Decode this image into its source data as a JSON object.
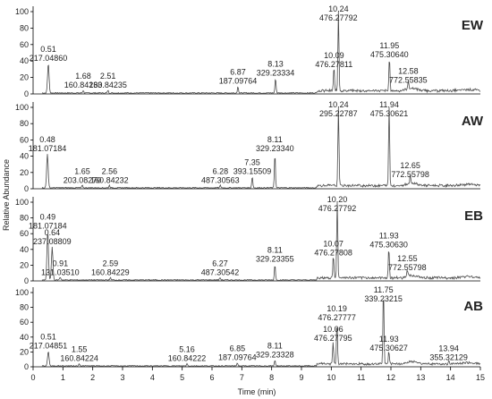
{
  "chart_data": {
    "type": "line",
    "xlabel": "Time (min)",
    "ylabel": "Relative Abundance",
    "xlim": [
      0,
      15
    ],
    "ylim": [
      0,
      100
    ],
    "x_ticks": [
      "0",
      "1",
      "2",
      "3",
      "4",
      "5",
      "6",
      "7",
      "8",
      "9",
      "10",
      "11",
      "12",
      "13",
      "14",
      "15"
    ],
    "y_ticks": [
      "0",
      "20",
      "40",
      "60",
      "80",
      "100"
    ],
    "panels": [
      {
        "name": "EW",
        "peaks": [
          {
            "rt": 0.51,
            "height": 36,
            "label": [
              "0.51",
              "217.04860"
            ]
          },
          {
            "rt": 1.68,
            "height": 3,
            "label": [
              "1.68",
              "160.84233"
            ]
          },
          {
            "rt": 2.51,
            "height": 3,
            "label": [
              "2.51",
              "160.84235"
            ]
          },
          {
            "rt": 6.87,
            "height": 8,
            "label": [
              "6.87",
              "187.09764"
            ]
          },
          {
            "rt": 8.13,
            "height": 18,
            "label": [
              "8.13",
              "329.23334"
            ]
          },
          {
            "rt": 10.09,
            "height": 28,
            "label": [
              "10.09",
              "476.27811"
            ]
          },
          {
            "rt": 10.24,
            "height": 100,
            "label": [
              "10.24",
              "476.27792"
            ]
          },
          {
            "rt": 11.95,
            "height": 40,
            "label": [
              "11.95",
              "475.30640"
            ]
          },
          {
            "rt": 12.58,
            "height": 9,
            "label": [
              "12.58",
              "772.55835"
            ]
          }
        ]
      },
      {
        "name": "AW",
        "peaks": [
          {
            "rt": 0.48,
            "height": 42,
            "label": [
              "0.48",
              "181.07184"
            ]
          },
          {
            "rt": 1.65,
            "height": 3,
            "label": [
              "1.65",
              "203.08270"
            ]
          },
          {
            "rt": 2.56,
            "height": 3,
            "label": [
              "2.56",
              "160.84232"
            ]
          },
          {
            "rt": 6.28,
            "height": 3,
            "label": [
              "6.28",
              "487.30563"
            ]
          },
          {
            "rt": 7.35,
            "height": 14,
            "label": [
              "7.35",
              "393.15509"
            ]
          },
          {
            "rt": 8.11,
            "height": 42,
            "label": [
              "8.11",
              "329.23340"
            ]
          },
          {
            "rt": 10.24,
            "height": 100,
            "label": [
              "10.24",
              "295.22787"
            ]
          },
          {
            "rt": 11.94,
            "height": 98,
            "label": [
              "11.94",
              "475.30621"
            ]
          },
          {
            "rt": 12.65,
            "height": 10,
            "label": [
              "12.65",
              "772.55798"
            ]
          }
        ]
      },
      {
        "name": "EB",
        "peaks": [
          {
            "rt": 0.49,
            "height": 62,
            "label": [
              "0.49",
              "181.07184"
            ]
          },
          {
            "rt": 0.64,
            "height": 42,
            "label": [
              "0.64",
              "237.08809"
            ]
          },
          {
            "rt": 0.91,
            "height": 3,
            "label": [
              "0.91",
              "131.03510"
            ]
          },
          {
            "rt": 2.59,
            "height": 3,
            "label": [
              "2.59",
              "160.84229"
            ]
          },
          {
            "rt": 6.27,
            "height": 3,
            "label": [
              "6.27",
              "487.30542"
            ]
          },
          {
            "rt": 8.11,
            "height": 20,
            "label": [
              "8.11",
              "329.23355"
            ]
          },
          {
            "rt": 10.07,
            "height": 28,
            "label": [
              "10.07",
              "476.27808"
            ]
          },
          {
            "rt": 10.2,
            "height": 100,
            "label": [
              "10.20",
              "476.27792"
            ]
          },
          {
            "rt": 11.93,
            "height": 38,
            "label": [
              "11.93",
              "475.30630"
            ]
          },
          {
            "rt": 12.55,
            "height": 9,
            "label": [
              "12.55",
              "772.55798"
            ]
          }
        ]
      },
      {
        "name": "AB",
        "peaks": [
          {
            "rt": 0.51,
            "height": 20,
            "label": [
              "0.51",
              "217.04851"
            ]
          },
          {
            "rt": 1.55,
            "height": 3,
            "label": [
              "1.55",
              "160.84224"
            ]
          },
          {
            "rt": 5.16,
            "height": 3,
            "label": [
              "5.16",
              "160.84222"
            ]
          },
          {
            "rt": 6.85,
            "height": 4,
            "label": [
              "6.85",
              "187.09764"
            ]
          },
          {
            "rt": 8.11,
            "height": 8,
            "label": [
              "8.11",
              "329.23328"
            ]
          },
          {
            "rt": 10.06,
            "height": 30,
            "label": [
              "10.06",
              "476.27795"
            ]
          },
          {
            "rt": 10.19,
            "height": 58,
            "label": [
              "10.19",
              "476.27777"
            ]
          },
          {
            "rt": 11.75,
            "height": 100,
            "label": [
              "11.75",
              "339.23215"
            ]
          },
          {
            "rt": 11.93,
            "height": 17,
            "label": [
              "11.93",
              "475.30627"
            ]
          },
          {
            "rt": 13.94,
            "height": 4,
            "label": [
              "13.94",
              "355.32129"
            ]
          }
        ]
      }
    ]
  }
}
